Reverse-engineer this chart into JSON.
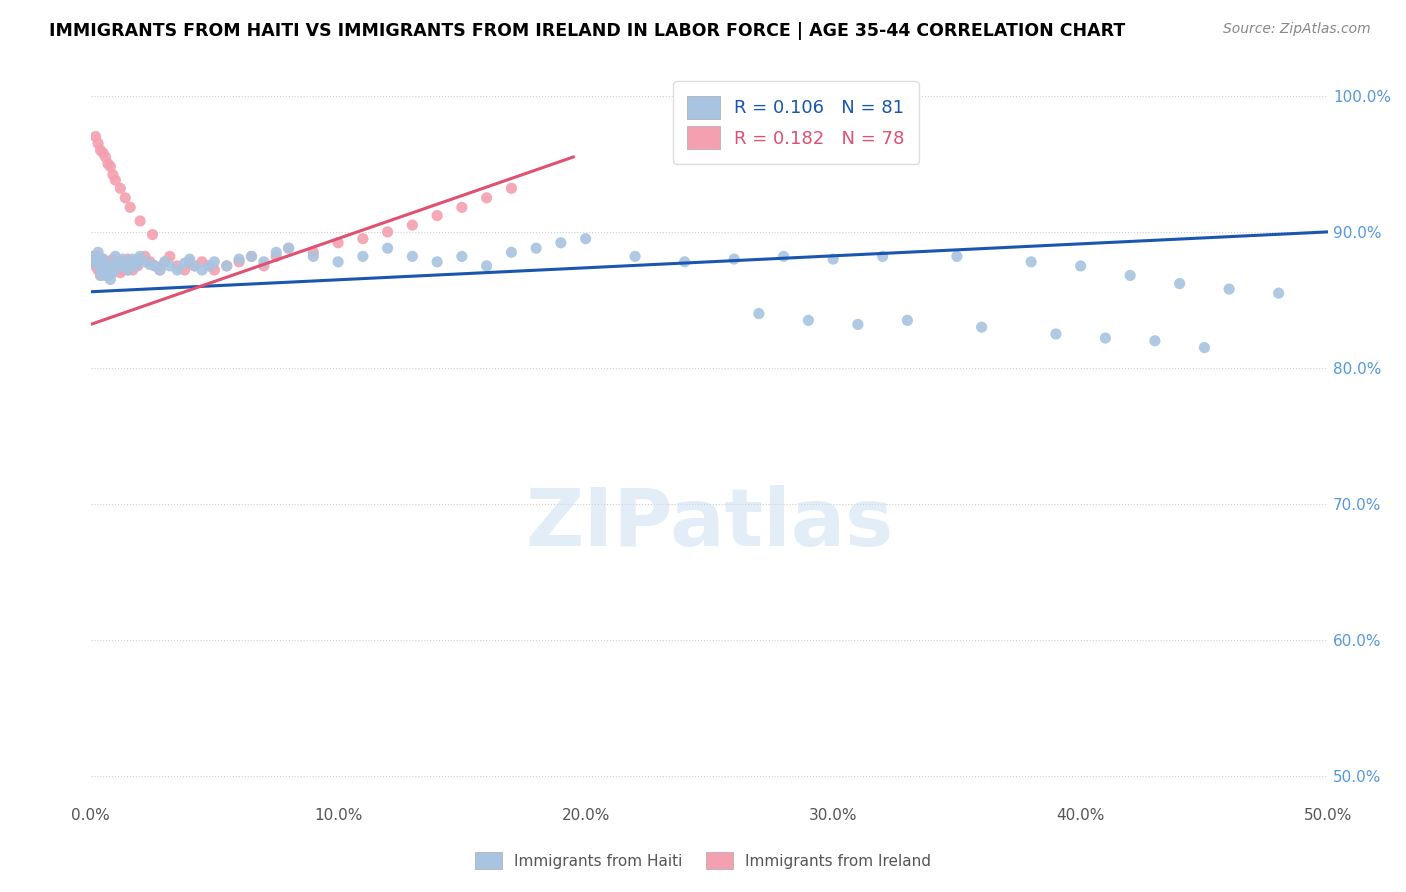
{
  "title": "IMMIGRANTS FROM HAITI VS IMMIGRANTS FROM IRELAND IN LABOR FORCE | AGE 35-44 CORRELATION CHART",
  "source": "Source: ZipAtlas.com",
  "xlabel_ticks": [
    "0.0%",
    "10.0%",
    "20.0%",
    "30.0%",
    "40.0%",
    "50.0%"
  ],
  "xlabel_vals": [
    0.0,
    0.1,
    0.2,
    0.3,
    0.4,
    0.5
  ],
  "ylabel_right_ticks": [
    "100.0%",
    "90.0%",
    "80.0%",
    "70.0%",
    "60.0%",
    "50.0%"
  ],
  "ylabel_right_vals": [
    1.0,
    0.9,
    0.8,
    0.7,
    0.6,
    0.5
  ],
  "xlim": [
    0.0,
    0.5
  ],
  "ylim": [
    0.48,
    1.02
  ],
  "haiti_R": 0.106,
  "haiti_N": 81,
  "ireland_R": 0.182,
  "ireland_N": 78,
  "haiti_color": "#a8c4e0",
  "ireland_color": "#f4a0b0",
  "haiti_line_color": "#1a56b0",
  "ireland_line_color": "#e05070",
  "watermark": "ZIPatlas",
  "haiti_scatter_x": [
    0.001,
    0.002,
    0.003,
    0.003,
    0.004,
    0.004,
    0.005,
    0.005,
    0.006,
    0.006,
    0.007,
    0.007,
    0.008,
    0.008,
    0.009,
    0.009,
    0.01,
    0.01,
    0.011,
    0.012,
    0.013,
    0.014,
    0.015,
    0.016,
    0.017,
    0.018,
    0.019,
    0.02,
    0.022,
    0.024,
    0.026,
    0.028,
    0.03,
    0.032,
    0.035,
    0.038,
    0.04,
    0.042,
    0.045,
    0.048,
    0.05,
    0.055,
    0.06,
    0.065,
    0.07,
    0.075,
    0.08,
    0.09,
    0.1,
    0.11,
    0.12,
    0.13,
    0.14,
    0.15,
    0.16,
    0.17,
    0.18,
    0.19,
    0.2,
    0.22,
    0.24,
    0.26,
    0.28,
    0.3,
    0.32,
    0.35,
    0.38,
    0.4,
    0.42,
    0.44,
    0.46,
    0.48,
    0.27,
    0.29,
    0.31,
    0.33,
    0.36,
    0.39,
    0.41,
    0.43,
    0.45
  ],
  "haiti_scatter_y": [
    0.882,
    0.878,
    0.875,
    0.885,
    0.88,
    0.868,
    0.872,
    0.88,
    0.875,
    0.87,
    0.868,
    0.876,
    0.872,
    0.865,
    0.87,
    0.875,
    0.873,
    0.882,
    0.878,
    0.875,
    0.88,
    0.875,
    0.872,
    0.878,
    0.88,
    0.875,
    0.878,
    0.882,
    0.878,
    0.876,
    0.875,
    0.872,
    0.878,
    0.875,
    0.872,
    0.877,
    0.88,
    0.875,
    0.872,
    0.875,
    0.878,
    0.875,
    0.88,
    0.882,
    0.878,
    0.885,
    0.888,
    0.882,
    0.878,
    0.882,
    0.888,
    0.882,
    0.878,
    0.882,
    0.875,
    0.885,
    0.888,
    0.892,
    0.895,
    0.882,
    0.878,
    0.88,
    0.882,
    0.88,
    0.882,
    0.882,
    0.878,
    0.875,
    0.868,
    0.862,
    0.858,
    0.855,
    0.84,
    0.835,
    0.832,
    0.835,
    0.83,
    0.825,
    0.822,
    0.82,
    0.815
  ],
  "ireland_scatter_x": [
    0.001,
    0.001,
    0.002,
    0.002,
    0.003,
    0.003,
    0.003,
    0.004,
    0.004,
    0.005,
    0.005,
    0.005,
    0.006,
    0.006,
    0.007,
    0.007,
    0.008,
    0.008,
    0.009,
    0.009,
    0.01,
    0.01,
    0.011,
    0.011,
    0.012,
    0.012,
    0.013,
    0.013,
    0.014,
    0.015,
    0.015,
    0.016,
    0.017,
    0.018,
    0.019,
    0.02,
    0.022,
    0.024,
    0.026,
    0.028,
    0.03,
    0.032,
    0.035,
    0.038,
    0.04,
    0.042,
    0.045,
    0.048,
    0.05,
    0.055,
    0.06,
    0.065,
    0.07,
    0.075,
    0.08,
    0.09,
    0.1,
    0.11,
    0.12,
    0.13,
    0.14,
    0.15,
    0.16,
    0.17,
    0.002,
    0.003,
    0.004,
    0.005,
    0.006,
    0.007,
    0.008,
    0.009,
    0.01,
    0.012,
    0.014,
    0.016,
    0.02,
    0.025
  ],
  "ireland_scatter_y": [
    0.878,
    0.882,
    0.875,
    0.88,
    0.872,
    0.878,
    0.882,
    0.875,
    0.868,
    0.875,
    0.872,
    0.88,
    0.875,
    0.868,
    0.872,
    0.878,
    0.875,
    0.87,
    0.875,
    0.88,
    0.875,
    0.872,
    0.878,
    0.875,
    0.87,
    0.875,
    0.872,
    0.878,
    0.875,
    0.872,
    0.88,
    0.875,
    0.872,
    0.878,
    0.875,
    0.88,
    0.882,
    0.878,
    0.875,
    0.872,
    0.878,
    0.882,
    0.875,
    0.872,
    0.878,
    0.875,
    0.878,
    0.875,
    0.872,
    0.875,
    0.878,
    0.882,
    0.875,
    0.882,
    0.888,
    0.885,
    0.892,
    0.895,
    0.9,
    0.905,
    0.912,
    0.918,
    0.925,
    0.932,
    0.97,
    0.965,
    0.96,
    0.958,
    0.955,
    0.95,
    0.948,
    0.942,
    0.938,
    0.932,
    0.925,
    0.918,
    0.908,
    0.898
  ],
  "haiti_line_x": [
    0.0,
    0.5
  ],
  "haiti_line_y": [
    0.856,
    0.9
  ],
  "ireland_line_x": [
    0.0,
    0.195
  ],
  "ireland_line_y": [
    0.832,
    0.955
  ]
}
